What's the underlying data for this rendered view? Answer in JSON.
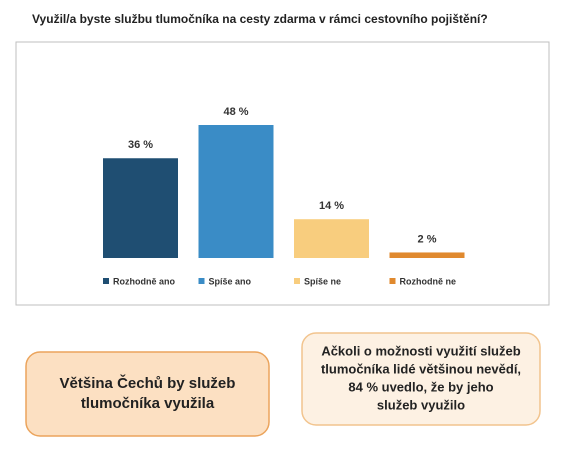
{
  "chart_data": {
    "type": "bar",
    "title": "Využil/a byste službu tlumočníka na cesty zdarma v rámci cestovního pojištění?",
    "categories": [
      "Rozhodně ano",
      "Spíše ano",
      "Spíše ne",
      "Rozhodně ne"
    ],
    "values": [
      36,
      48,
      14,
      2
    ],
    "value_labels": [
      "36 %",
      "48 %",
      "14 %",
      "2 %"
    ],
    "colors": [
      "#1f4e72",
      "#3a8cc6",
      "#f8cd7e",
      "#e0892e"
    ],
    "annotations": [
      {
        "lines": [
          "Většina Čechů by služeb",
          "tlumočníka využila"
        ]
      },
      {
        "lines": [
          "Ačkoli o možnosti využití služeb",
          "tlumočníka lidé většinou nevědí,",
          "84 % uvedlo, že by jeho",
          "služeb využilo"
        ]
      }
    ]
  }
}
